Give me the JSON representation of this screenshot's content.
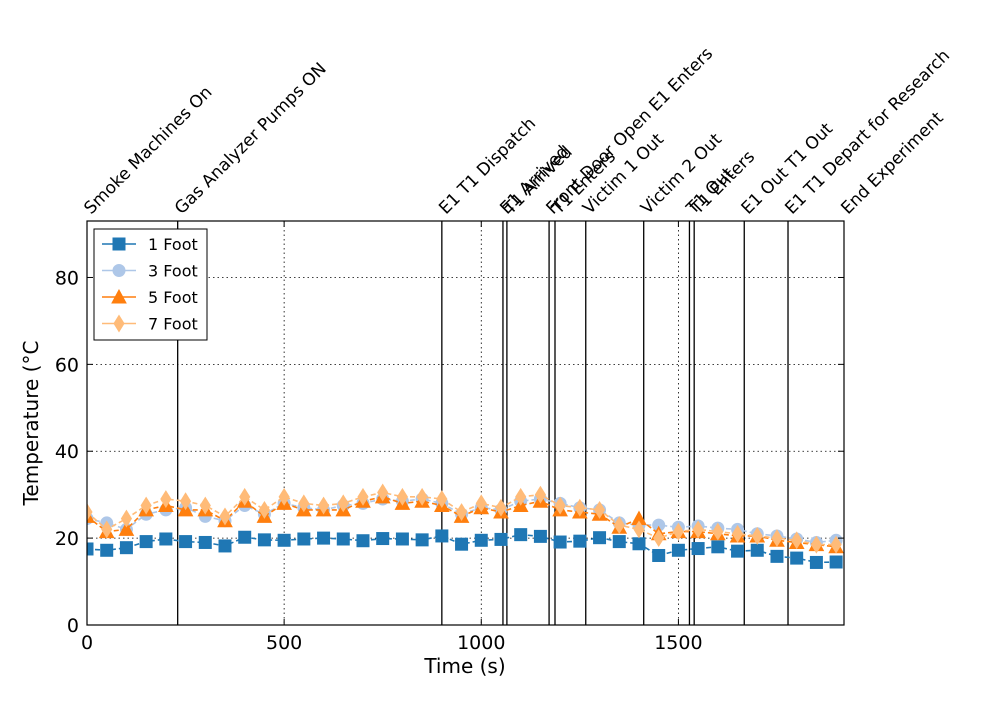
{
  "chart_data": {
    "type": "line",
    "title": "",
    "xlabel": "Time (s)",
    "ylabel": "Temperature (°C",
    "xlim": [
      0,
      1920
    ],
    "ylim": [
      0,
      93
    ],
    "xticks": [
      0,
      500,
      1000,
      1500
    ],
    "yticks": [
      0,
      20,
      40,
      60,
      80
    ],
    "grid": true,
    "legend_position": "top-left",
    "events": [
      {
        "label": "Smoke Machines On",
        "time": 0
      },
      {
        "label": "Gas Analyzer Pumps ON",
        "time": 230
      },
      {
        "label": "E1 T1 Dispatch",
        "time": 900
      },
      {
        "label": "E1 Arrived",
        "time": 1055
      },
      {
        "label": "T1 Arrived",
        "time": 1065
      },
      {
        "label": "Front Door Open E1 Enters",
        "time": 1172
      },
      {
        "label": "T1 Enters",
        "time": 1187
      },
      {
        "label": "Victim 1 Out",
        "time": 1265
      },
      {
        "label": "Victim 2 Out",
        "time": 1412
      },
      {
        "label": "T1 Out",
        "time": 1528
      },
      {
        "label": "T1 Enters",
        "time": 1540
      },
      {
        "label": "E1 Out T1 Out",
        "time": 1667
      },
      {
        "label": "E1 T1 Depart for Research",
        "time": 1778
      },
      {
        "label": "End Experiment",
        "time": 1920
      }
    ],
    "series": [
      {
        "name": "1 Foot",
        "color": "#1f77b4",
        "marker": "square",
        "x": [
          0,
          50,
          100,
          150,
          200,
          250,
          300,
          350,
          400,
          450,
          500,
          550,
          600,
          650,
          700,
          750,
          800,
          850,
          900,
          950,
          1000,
          1050,
          1100,
          1150,
          1200,
          1250,
          1300,
          1350,
          1400,
          1450,
          1500,
          1550,
          1600,
          1650,
          1700,
          1750,
          1800,
          1850,
          1900
        ],
        "values": [
          17.5,
          17.2,
          17.8,
          19.2,
          19.8,
          19.2,
          19.0,
          18.2,
          20.2,
          19.6,
          19.5,
          19.8,
          20.0,
          19.8,
          19.4,
          19.9,
          19.8,
          19.6,
          20.5,
          18.6,
          19.5,
          19.7,
          20.8,
          20.4,
          19.1,
          19.3,
          20.1,
          19.2,
          18.7,
          16.0,
          17.2,
          17.6,
          18.0,
          17.0,
          17.2,
          15.8,
          15.4,
          14.4,
          14.5
        ]
      },
      {
        "name": "3 Foot",
        "color": "#aec7e8",
        "marker": "circle",
        "x": [
          0,
          50,
          100,
          150,
          200,
          250,
          300,
          350,
          400,
          450,
          500,
          550,
          600,
          650,
          700,
          750,
          800,
          850,
          900,
          950,
          1000,
          1050,
          1100,
          1150,
          1200,
          1250,
          1300,
          1350,
          1400,
          1450,
          1500,
          1550,
          1600,
          1650,
          1700,
          1750,
          1800,
          1850,
          1900
        ],
        "values": [
          24.5,
          23.5,
          22.0,
          25.5,
          26.5,
          27.0,
          25.0,
          24.0,
          27.5,
          25.5,
          28.0,
          27.0,
          26.5,
          27.5,
          28.0,
          29.0,
          28.5,
          29.0,
          28.0,
          25.5,
          27.0,
          26.5,
          28.5,
          29.0,
          28.0,
          27.0,
          26.5,
          23.5,
          23.0,
          23.0,
          22.5,
          22.8,
          22.3,
          22.0,
          21.0,
          20.5,
          19.8,
          19.0,
          19.5
        ]
      },
      {
        "name": "5 Foot",
        "color": "#ff7f0e",
        "marker": "triangle",
        "x": [
          0,
          50,
          100,
          150,
          200,
          250,
          300,
          350,
          400,
          450,
          500,
          550,
          600,
          650,
          700,
          750,
          800,
          850,
          900,
          950,
          1000,
          1050,
          1100,
          1150,
          1200,
          1250,
          1300,
          1350,
          1400,
          1450,
          1500,
          1550,
          1600,
          1650,
          1700,
          1750,
          1800,
          1850,
          1900
        ],
        "values": [
          25.0,
          21.5,
          22.0,
          26.5,
          27.5,
          26.5,
          26.5,
          24.0,
          28.5,
          25.0,
          28.0,
          26.5,
          26.5,
          26.5,
          28.5,
          29.5,
          28.0,
          28.5,
          27.5,
          25.0,
          27.0,
          26.0,
          27.5,
          28.5,
          26.5,
          26.0,
          25.5,
          22.5,
          24.5,
          21.0,
          21.5,
          21.5,
          21.0,
          20.5,
          20.5,
          19.5,
          19.0,
          18.5,
          18.0
        ]
      },
      {
        "name": "7 Foot",
        "color": "#ffbb78",
        "marker": "diamond",
        "x": [
          0,
          50,
          100,
          150,
          200,
          250,
          300,
          350,
          400,
          450,
          500,
          550,
          600,
          650,
          700,
          750,
          800,
          850,
          900,
          950,
          1000,
          1050,
          1100,
          1150,
          1200,
          1250,
          1300,
          1350,
          1400,
          1450,
          1500,
          1550,
          1600,
          1650,
          1700,
          1750,
          1800,
          1850,
          1900
        ],
        "values": [
          26.0,
          22.0,
          24.5,
          27.5,
          29.0,
          28.5,
          27.5,
          25.0,
          29.5,
          26.5,
          29.5,
          28.0,
          27.5,
          28.0,
          29.5,
          30.5,
          29.5,
          29.5,
          29.0,
          26.0,
          28.0,
          27.0,
          29.5,
          30.0,
          27.5,
          27.0,
          26.5,
          23.0,
          22.0,
          20.0,
          21.5,
          22.0,
          21.5,
          21.0,
          20.5,
          20.0,
          19.5,
          18.5,
          18.5
        ]
      }
    ]
  }
}
